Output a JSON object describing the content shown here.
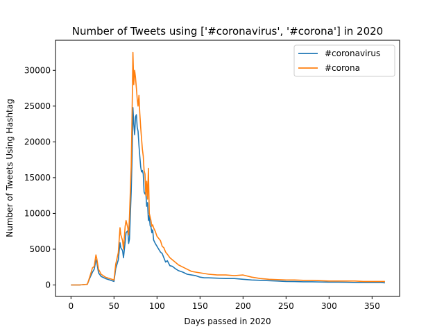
{
  "chart_data": {
    "type": "line",
    "title": "Number of Tweets using ['#coronavirus', '#corona'] in 2020",
    "xlabel": "Days passed in 2020",
    "ylabel": "Number of Tweets Using Hashtag",
    "xlim": [
      -18,
      382
    ],
    "ylim": [
      -1600,
      34200
    ],
    "xticks": [
      0,
      50,
      100,
      150,
      200,
      250,
      300,
      350
    ],
    "yticks": [
      0,
      5000,
      10000,
      15000,
      20000,
      25000,
      30000
    ],
    "legend_position": "top-right",
    "grid": false,
    "series": [
      {
        "name": "#coronavirus",
        "color": "#1f77b4",
        "x": [
          0,
          10,
          19,
          22,
          25,
          27,
          29,
          30,
          32,
          35,
          40,
          45,
          50,
          52,
          55,
          57,
          58,
          60,
          61,
          63,
          64,
          66,
          67,
          68,
          70,
          71,
          72,
          73,
          74,
          75,
          76,
          77,
          78,
          79,
          80,
          81,
          82,
          83,
          84,
          85,
          86,
          87,
          88,
          89,
          90,
          91,
          92,
          93,
          94,
          95,
          96,
          98,
          100,
          102,
          104,
          106,
          108,
          110,
          112,
          115,
          118,
          121,
          125,
          130,
          135,
          140,
          145,
          150,
          155,
          160,
          170,
          180,
          190,
          200,
          210,
          220,
          230,
          240,
          250,
          260,
          270,
          280,
          290,
          300,
          310,
          320,
          330,
          340,
          350,
          360,
          365
        ],
        "values": [
          0,
          0,
          100,
          1000,
          1800,
          2200,
          3500,
          3200,
          1700,
          1200,
          900,
          700,
          500,
          2300,
          3500,
          5900,
          5200,
          4800,
          3800,
          6000,
          7300,
          7600,
          5800,
          6400,
          13000,
          18000,
          24800,
          22500,
          21000,
          23500,
          23800,
          22000,
          21500,
          19500,
          18000,
          16500,
          15800,
          16000,
          15500,
          13000,
          12700,
          13000,
          11000,
          11500,
          9000,
          9700,
          8300,
          8100,
          7300,
          7700,
          6300,
          5800,
          5400,
          5000,
          4600,
          4400,
          3800,
          3200,
          3400,
          2700,
          2600,
          2300,
          2000,
          1800,
          1500,
          1400,
          1300,
          1100,
          1000,
          1000,
          950,
          900,
          900,
          800,
          700,
          650,
          600,
          550,
          500,
          480,
          450,
          450,
          420,
          400,
          400,
          380,
          350,
          350,
          350,
          350,
          300
        ]
      },
      {
        "name": "#corona",
        "color": "#ff7f0e",
        "x": [
          0,
          10,
          19,
          22,
          25,
          27,
          29,
          30,
          32,
          35,
          40,
          45,
          50,
          52,
          55,
          57,
          58,
          60,
          61,
          63,
          64,
          66,
          67,
          68,
          70,
          71,
          72,
          73,
          74,
          75,
          76,
          77,
          78,
          79,
          80,
          81,
          82,
          83,
          84,
          85,
          86,
          87,
          88,
          89,
          90,
          91,
          92,
          93,
          94,
          95,
          96,
          98,
          100,
          102,
          104,
          106,
          108,
          110,
          112,
          115,
          118,
          121,
          125,
          130,
          135,
          140,
          145,
          150,
          155,
          160,
          170,
          180,
          190,
          200,
          210,
          220,
          230,
          240,
          250,
          260,
          270,
          280,
          290,
          300,
          310,
          320,
          330,
          340,
          350,
          360,
          365
        ],
        "values": [
          0,
          0,
          100,
          1200,
          2400,
          2600,
          4200,
          3700,
          2200,
          1500,
          1100,
          900,
          700,
          2900,
          4500,
          8000,
          7000,
          6200,
          5000,
          8200,
          9000,
          8000,
          7000,
          9500,
          16500,
          24000,
          32500,
          28000,
          30000,
          29000,
          27500,
          26000,
          25000,
          26500,
          24000,
          22000,
          20500,
          19000,
          18000,
          16000,
          15500,
          12500,
          14500,
          12000,
          16300,
          10000,
          9500,
          9000,
          8200,
          8400,
          8000,
          7500,
          6800,
          6500,
          6200,
          5400,
          5200,
          4600,
          4300,
          3800,
          3500,
          3200,
          2800,
          2500,
          2200,
          1900,
          1800,
          1700,
          1600,
          1500,
          1400,
          1400,
          1300,
          1400,
          1100,
          900,
          800,
          750,
          700,
          700,
          650,
          650,
          600,
          550,
          550,
          550,
          550,
          500,
          500,
          500,
          500
        ]
      }
    ]
  }
}
